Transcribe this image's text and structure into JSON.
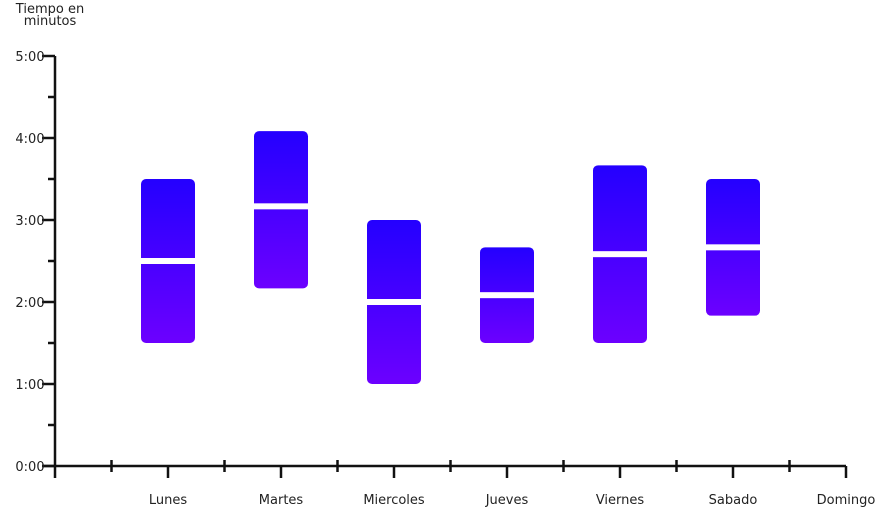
{
  "chart_data": {
    "type": "floating-bar",
    "ylabel": "Tiempo en minutos",
    "ylim": [
      0,
      300
    ],
    "y_ticks": [
      "0:00",
      "1:00",
      "2:00",
      "3:00",
      "4:00",
      "5:00"
    ],
    "categories": [
      "Lunes",
      "Martes",
      "Miercoles",
      "Jueves",
      "Viernes",
      "Sabado",
      "Domingo"
    ],
    "ranges": [
      {
        "min": 90,
        "median": 150,
        "max": 210
      },
      {
        "min": 130,
        "median": 190,
        "max": 245
      },
      {
        "min": 60,
        "median": 120,
        "max": 180
      },
      {
        "min": 90,
        "median": 125,
        "max": 160
      },
      {
        "min": 90,
        "median": 155,
        "max": 220
      },
      {
        "min": 110,
        "median": 160,
        "max": 210
      },
      null
    ],
    "colors": {
      "top": "#2400ff",
      "bottom": "#6c00ff",
      "median": "#ffffff",
      "axis": "#111111"
    },
    "grid": false
  }
}
